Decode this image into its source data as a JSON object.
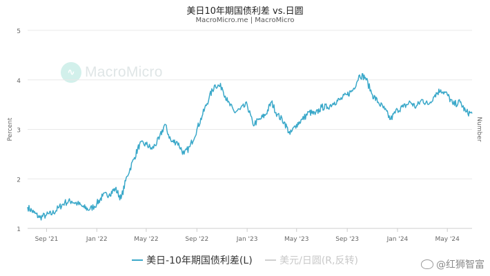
{
  "header": {
    "title": "美日10年期国债利差 vs.日圆",
    "subtitle": "MacroMicro.me | MacroMicro"
  },
  "watermark": {
    "logo_text": "MacroMicro",
    "corner_text": "@红狮智富"
  },
  "colors": {
    "series_primary": "#3aa8c9",
    "series_muted": "#cfcfcf",
    "grid": "#e8e8e8",
    "axis_text": "#666666"
  },
  "legend": [
    {
      "label": "美日-10年期国债利差(L)",
      "color": "#3aa8c9",
      "active": true
    },
    {
      "label": "美元/日圆(R,反转)",
      "color": "#cfcfcf",
      "active": false
    }
  ],
  "chart_data": {
    "type": "line",
    "ylabel": "Percent",
    "y2label": "Number",
    "ylim": [
      1,
      5
    ],
    "yticks": [
      1,
      2,
      3,
      4,
      5
    ],
    "xrange": [
      "2021-07-17",
      "2024-06-30"
    ],
    "xticks": [
      {
        "label": "Sep '21",
        "date": "2021-09-01"
      },
      {
        "label": "Jan '22",
        "date": "2022-01-01"
      },
      {
        "label": "May '22",
        "date": "2022-05-01"
      },
      {
        "label": "Sep '22",
        "date": "2022-09-01"
      },
      {
        "label": "Jan '23",
        "date": "2023-01-01"
      },
      {
        "label": "May '23",
        "date": "2023-05-01"
      },
      {
        "label": "Sep '23",
        "date": "2023-09-01"
      },
      {
        "label": "Jan '24",
        "date": "2024-01-01"
      },
      {
        "label": "May '24",
        "date": "2024-05-01"
      }
    ],
    "grid": true,
    "legend_position": "bottom",
    "series": [
      {
        "name": "美日-10年期国债利差(L)",
        "points": [
          [
            "2021-07-17",
            1.43
          ],
          [
            "2021-08-01",
            1.32
          ],
          [
            "2021-08-15",
            1.22
          ],
          [
            "2021-09-01",
            1.27
          ],
          [
            "2021-09-15",
            1.3
          ],
          [
            "2021-10-01",
            1.42
          ],
          [
            "2021-10-15",
            1.52
          ],
          [
            "2021-11-01",
            1.55
          ],
          [
            "2021-11-15",
            1.5
          ],
          [
            "2021-12-01",
            1.42
          ],
          [
            "2021-12-15",
            1.38
          ],
          [
            "2022-01-01",
            1.5
          ],
          [
            "2022-01-15",
            1.65
          ],
          [
            "2022-02-01",
            1.7
          ],
          [
            "2022-02-15",
            1.8
          ],
          [
            "2022-03-01",
            1.6
          ],
          [
            "2022-03-15",
            2.05
          ],
          [
            "2022-04-01",
            2.4
          ],
          [
            "2022-04-15",
            2.7
          ],
          [
            "2022-05-01",
            2.7
          ],
          [
            "2022-05-15",
            2.6
          ],
          [
            "2022-06-01",
            2.8
          ],
          [
            "2022-06-15",
            3.1
          ],
          [
            "2022-07-01",
            2.75
          ],
          [
            "2022-07-15",
            2.75
          ],
          [
            "2022-08-01",
            2.5
          ],
          [
            "2022-08-15",
            2.65
          ],
          [
            "2022-09-01",
            3.0
          ],
          [
            "2022-09-15",
            3.3
          ],
          [
            "2022-10-01",
            3.65
          ],
          [
            "2022-10-15",
            3.9
          ],
          [
            "2022-11-01",
            3.85
          ],
          [
            "2022-11-15",
            3.55
          ],
          [
            "2022-12-01",
            3.35
          ],
          [
            "2022-12-15",
            3.4
          ],
          [
            "2023-01-01",
            3.5
          ],
          [
            "2023-01-15",
            3.1
          ],
          [
            "2023-02-01",
            3.2
          ],
          [
            "2023-02-15",
            3.3
          ],
          [
            "2023-03-01",
            3.55
          ],
          [
            "2023-03-15",
            3.3
          ],
          [
            "2023-04-01",
            3.15
          ],
          [
            "2023-04-15",
            2.9
          ],
          [
            "2023-05-01",
            3.1
          ],
          [
            "2023-05-15",
            3.2
          ],
          [
            "2023-06-01",
            3.35
          ],
          [
            "2023-06-15",
            3.3
          ],
          [
            "2023-07-01",
            3.45
          ],
          [
            "2023-07-15",
            3.45
          ],
          [
            "2023-08-01",
            3.55
          ],
          [
            "2023-08-15",
            3.6
          ],
          [
            "2023-09-01",
            3.7
          ],
          [
            "2023-09-15",
            3.8
          ],
          [
            "2023-10-01",
            4.1
          ],
          [
            "2023-10-15",
            4.05
          ],
          [
            "2023-11-01",
            3.7
          ],
          [
            "2023-11-15",
            3.55
          ],
          [
            "2023-12-01",
            3.4
          ],
          [
            "2023-12-15",
            3.2
          ],
          [
            "2024-01-01",
            3.4
          ],
          [
            "2024-01-15",
            3.45
          ],
          [
            "2024-02-01",
            3.55
          ],
          [
            "2024-02-15",
            3.45
          ],
          [
            "2024-03-01",
            3.6
          ],
          [
            "2024-03-15",
            3.5
          ],
          [
            "2024-04-01",
            3.7
          ],
          [
            "2024-04-15",
            3.8
          ],
          [
            "2024-05-01",
            3.7
          ],
          [
            "2024-05-15",
            3.5
          ],
          [
            "2024-06-01",
            3.55
          ],
          [
            "2024-06-15",
            3.35
          ],
          [
            "2024-06-30",
            3.32
          ]
        ]
      }
    ]
  }
}
